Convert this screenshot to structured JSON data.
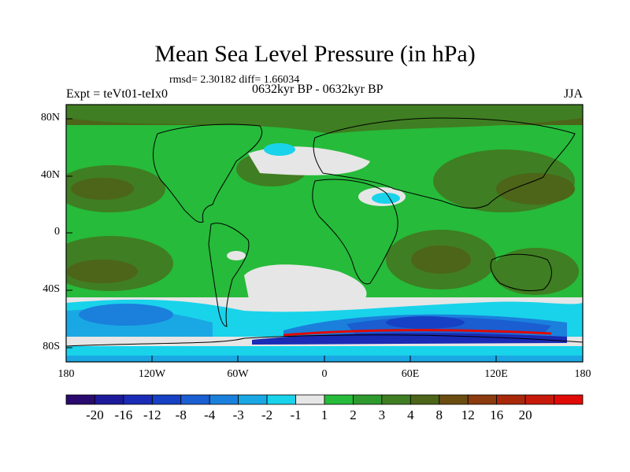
{
  "title": "Mean Sea Level Pressure (in hPa)",
  "stats_text": "rmsd= 2.30182 diff= 1.66034",
  "experiment_label": "Expt = teVt01-teIx0",
  "period_label": "0632kyr BP - 0632kyr BP",
  "season_label": "JJA",
  "lat_ticks": [
    "80N",
    "40N",
    "0",
    "40S",
    "80S"
  ],
  "lon_ticks": [
    "180",
    "120W",
    "60W",
    "0",
    "60E",
    "120E",
    "180"
  ],
  "colorbar": {
    "labels": [
      "-20",
      "-16",
      "-12",
      "-8",
      "-4",
      "-3",
      "-2",
      "-1",
      "1",
      "2",
      "3",
      "4",
      "8",
      "12",
      "16",
      "20"
    ],
    "colors": [
      "#2a0a6e",
      "#1c1a9a",
      "#1a2bb5",
      "#1641c4",
      "#1a5ed2",
      "#1a80dc",
      "#1aa8e4",
      "#19d3ea",
      "#e6e6e6",
      "#26bb3a",
      "#2e9a2e",
      "#3f7e22",
      "#4d6518",
      "#6b4d12",
      "#8b3b0e",
      "#a9280a",
      "#c81a0a",
      "#e00a06"
    ]
  },
  "colors": {
    "background": "#ffffff",
    "land_outline": "#000000",
    "ocean_base": "#26bb3a"
  }
}
